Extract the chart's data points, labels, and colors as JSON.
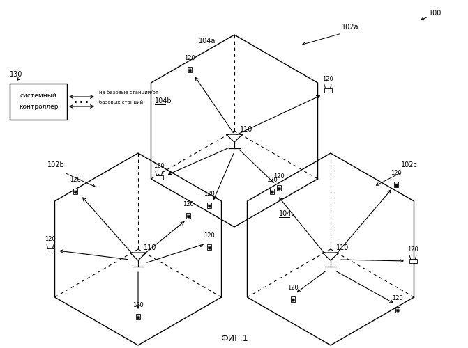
{
  "fig_width": 6.71,
  "fig_height": 5.0,
  "dpi": 100,
  "bg_color": "#ffffff",
  "title": "ФИГ.1",
  "label_100": "100",
  "label_130": "130",
  "label_110": "110",
  "label_120": "120",
  "label_102a": "102a",
  "label_102b": "102b",
  "label_102c": "102c",
  "label_104a": "104a",
  "label_104b": "104b",
  "label_104c": "104c",
  "controller_text1": "системный",
  "controller_text2": "контроллер",
  "arrow_label": "на базовые станции/от\nбазовых станций",
  "font_size_labels": 7,
  "font_size_title": 9
}
